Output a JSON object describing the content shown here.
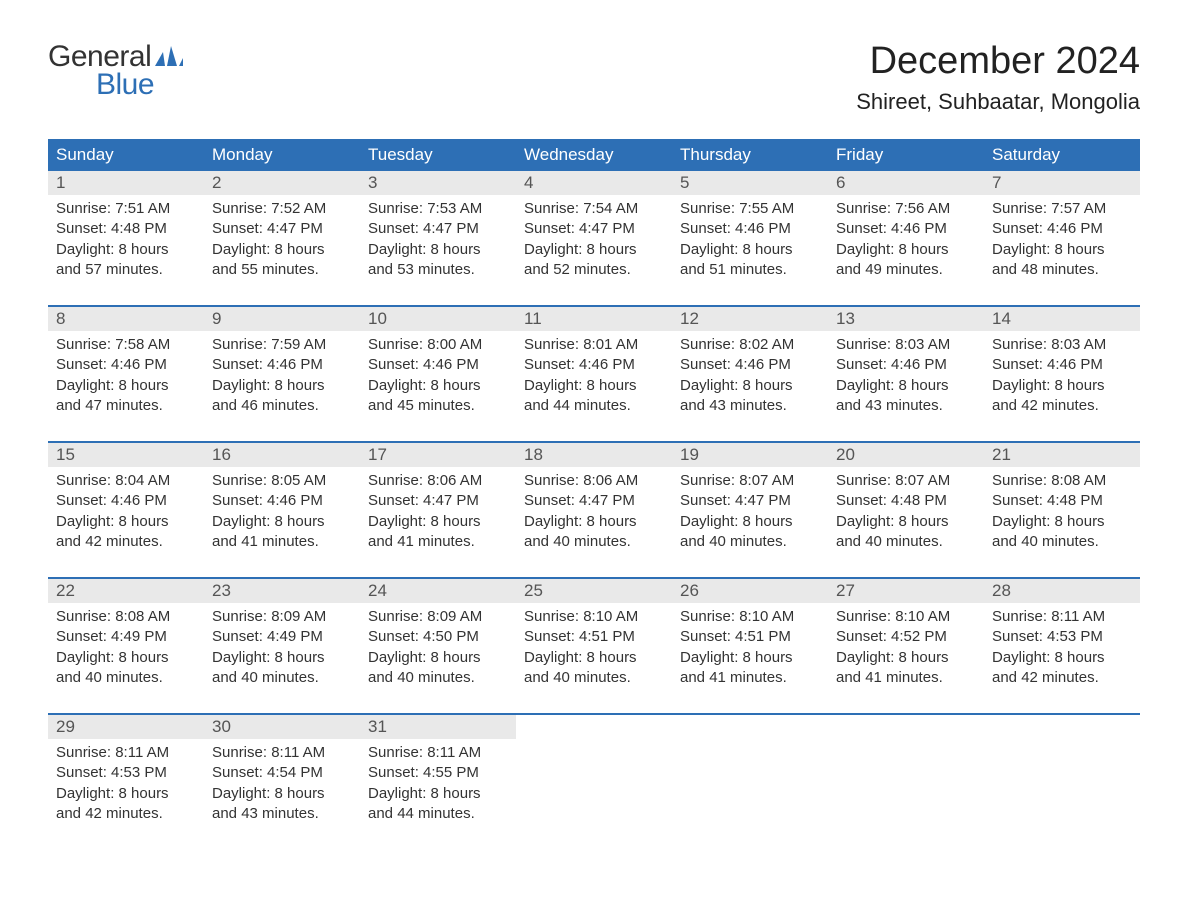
{
  "logo": {
    "text_general": "General",
    "text_blue": "Blue",
    "flag_color": "#2d6fb5"
  },
  "title": "December 2024",
  "subtitle": "Shireet, Suhbaatar, Mongolia",
  "colors": {
    "header_bg": "#2d6fb5",
    "header_text": "#ffffff",
    "daynum_bg": "#e9e9e9",
    "border": "#2d6fb5",
    "text": "#333333",
    "background": "#ffffff"
  },
  "day_headers": [
    "Sunday",
    "Monday",
    "Tuesday",
    "Wednesday",
    "Thursday",
    "Friday",
    "Saturday"
  ],
  "weeks": [
    [
      {
        "n": "1",
        "sr": "7:51 AM",
        "ss": "4:48 PM",
        "dl1": "Daylight: 8 hours",
        "dl2": "and 57 minutes."
      },
      {
        "n": "2",
        "sr": "7:52 AM",
        "ss": "4:47 PM",
        "dl1": "Daylight: 8 hours",
        "dl2": "and 55 minutes."
      },
      {
        "n": "3",
        "sr": "7:53 AM",
        "ss": "4:47 PM",
        "dl1": "Daylight: 8 hours",
        "dl2": "and 53 minutes."
      },
      {
        "n": "4",
        "sr": "7:54 AM",
        "ss": "4:47 PM",
        "dl1": "Daylight: 8 hours",
        "dl2": "and 52 minutes."
      },
      {
        "n": "5",
        "sr": "7:55 AM",
        "ss": "4:46 PM",
        "dl1": "Daylight: 8 hours",
        "dl2": "and 51 minutes."
      },
      {
        "n": "6",
        "sr": "7:56 AM",
        "ss": "4:46 PM",
        "dl1": "Daylight: 8 hours",
        "dl2": "and 49 minutes."
      },
      {
        "n": "7",
        "sr": "7:57 AM",
        "ss": "4:46 PM",
        "dl1": "Daylight: 8 hours",
        "dl2": "and 48 minutes."
      }
    ],
    [
      {
        "n": "8",
        "sr": "7:58 AM",
        "ss": "4:46 PM",
        "dl1": "Daylight: 8 hours",
        "dl2": "and 47 minutes."
      },
      {
        "n": "9",
        "sr": "7:59 AM",
        "ss": "4:46 PM",
        "dl1": "Daylight: 8 hours",
        "dl2": "and 46 minutes."
      },
      {
        "n": "10",
        "sr": "8:00 AM",
        "ss": "4:46 PM",
        "dl1": "Daylight: 8 hours",
        "dl2": "and 45 minutes."
      },
      {
        "n": "11",
        "sr": "8:01 AM",
        "ss": "4:46 PM",
        "dl1": "Daylight: 8 hours",
        "dl2": "and 44 minutes."
      },
      {
        "n": "12",
        "sr": "8:02 AM",
        "ss": "4:46 PM",
        "dl1": "Daylight: 8 hours",
        "dl2": "and 43 minutes."
      },
      {
        "n": "13",
        "sr": "8:03 AM",
        "ss": "4:46 PM",
        "dl1": "Daylight: 8 hours",
        "dl2": "and 43 minutes."
      },
      {
        "n": "14",
        "sr": "8:03 AM",
        "ss": "4:46 PM",
        "dl1": "Daylight: 8 hours",
        "dl2": "and 42 minutes."
      }
    ],
    [
      {
        "n": "15",
        "sr": "8:04 AM",
        "ss": "4:46 PM",
        "dl1": "Daylight: 8 hours",
        "dl2": "and 42 minutes."
      },
      {
        "n": "16",
        "sr": "8:05 AM",
        "ss": "4:46 PM",
        "dl1": "Daylight: 8 hours",
        "dl2": "and 41 minutes."
      },
      {
        "n": "17",
        "sr": "8:06 AM",
        "ss": "4:47 PM",
        "dl1": "Daylight: 8 hours",
        "dl2": "and 41 minutes."
      },
      {
        "n": "18",
        "sr": "8:06 AM",
        "ss": "4:47 PM",
        "dl1": "Daylight: 8 hours",
        "dl2": "and 40 minutes."
      },
      {
        "n": "19",
        "sr": "8:07 AM",
        "ss": "4:47 PM",
        "dl1": "Daylight: 8 hours",
        "dl2": "and 40 minutes."
      },
      {
        "n": "20",
        "sr": "8:07 AM",
        "ss": "4:48 PM",
        "dl1": "Daylight: 8 hours",
        "dl2": "and 40 minutes."
      },
      {
        "n": "21",
        "sr": "8:08 AM",
        "ss": "4:48 PM",
        "dl1": "Daylight: 8 hours",
        "dl2": "and 40 minutes."
      }
    ],
    [
      {
        "n": "22",
        "sr": "8:08 AM",
        "ss": "4:49 PM",
        "dl1": "Daylight: 8 hours",
        "dl2": "and 40 minutes."
      },
      {
        "n": "23",
        "sr": "8:09 AM",
        "ss": "4:49 PM",
        "dl1": "Daylight: 8 hours",
        "dl2": "and 40 minutes."
      },
      {
        "n": "24",
        "sr": "8:09 AM",
        "ss": "4:50 PM",
        "dl1": "Daylight: 8 hours",
        "dl2": "and 40 minutes."
      },
      {
        "n": "25",
        "sr": "8:10 AM",
        "ss": "4:51 PM",
        "dl1": "Daylight: 8 hours",
        "dl2": "and 40 minutes."
      },
      {
        "n": "26",
        "sr": "8:10 AM",
        "ss": "4:51 PM",
        "dl1": "Daylight: 8 hours",
        "dl2": "and 41 minutes."
      },
      {
        "n": "27",
        "sr": "8:10 AM",
        "ss": "4:52 PM",
        "dl1": "Daylight: 8 hours",
        "dl2": "and 41 minutes."
      },
      {
        "n": "28",
        "sr": "8:11 AM",
        "ss": "4:53 PM",
        "dl1": "Daylight: 8 hours",
        "dl2": "and 42 minutes."
      }
    ],
    [
      {
        "n": "29",
        "sr": "8:11 AM",
        "ss": "4:53 PM",
        "dl1": "Daylight: 8 hours",
        "dl2": "and 42 minutes."
      },
      {
        "n": "30",
        "sr": "8:11 AM",
        "ss": "4:54 PM",
        "dl1": "Daylight: 8 hours",
        "dl2": "and 43 minutes."
      },
      {
        "n": "31",
        "sr": "8:11 AM",
        "ss": "4:55 PM",
        "dl1": "Daylight: 8 hours",
        "dl2": "and 44 minutes."
      },
      null,
      null,
      null,
      null
    ]
  ],
  "labels": {
    "sunrise": "Sunrise: ",
    "sunset": "Sunset: "
  }
}
